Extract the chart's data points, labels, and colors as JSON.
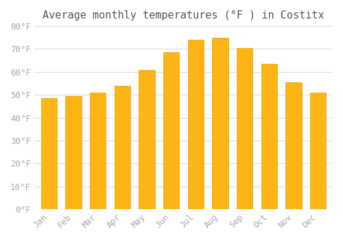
{
  "title": "Average monthly temperatures (°F ) in Costitx",
  "months": [
    "Jan",
    "Feb",
    "Mar",
    "Apr",
    "May",
    "Jun",
    "Jul",
    "Aug",
    "Sep",
    "Oct",
    "Nov",
    "Dec"
  ],
  "values": [
    48.5,
    49.5,
    51.0,
    54.0,
    61.0,
    68.5,
    74.0,
    75.0,
    70.5,
    63.5,
    55.5,
    51.0
  ],
  "bar_color_main": "#FDB515",
  "bar_color_edge": "#E8A000",
  "ylim": [
    0,
    80
  ],
  "ytick_step": 10,
  "background_color": "#ffffff",
  "grid_color": "#dddddd",
  "title_fontsize": 11,
  "tick_fontsize": 9,
  "tick_label_color": "#aaaaaa",
  "title_color": "#555555"
}
